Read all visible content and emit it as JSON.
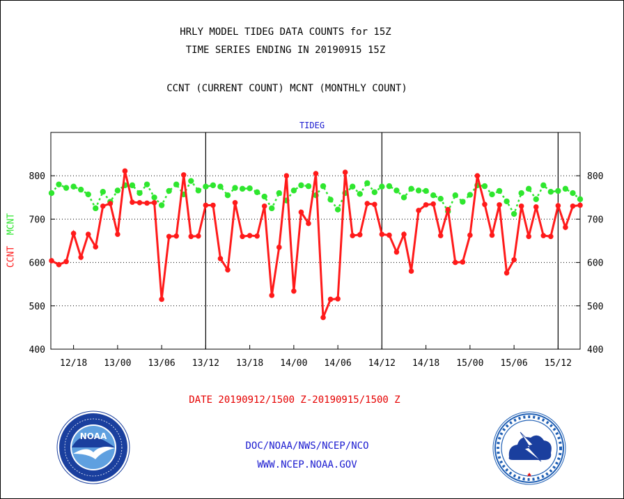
{
  "header": {
    "title_line1": "HRLY MODEL TIDEG DATA COUNTS for 15Z",
    "title_line2": "TIME SERIES ENDING IN 20190915 15Z",
    "subtitle": "CCNT (CURRENT COUNT) MCNT (MONTHLY COUNT)"
  },
  "footer": {
    "date_range": "DATE 20190912/1500 Z-20190915/1500 Z",
    "org": "DOC/NOAA/NWS/NCEP/NCO",
    "url": "WWW.NCEP.NOAA.GOV"
  },
  "logos": {
    "left": {
      "icon": "noaa-logo-icon",
      "text": "NOAA",
      "colors": {
        "ring": "#1a3f9e",
        "center": "#5fa0e0",
        "gull": "#ffffff"
      }
    },
    "right": {
      "icon": "nws-logo-icon",
      "colors": {
        "ring": "#1f5fb4",
        "center": "#ffffff",
        "cloud": "#1a3f9e"
      }
    }
  },
  "colors": {
    "ccnt": "#ff1a1a",
    "mcnt": "#2ee62e",
    "panel_title": "#1a1ad0",
    "footer_red": "#e60000",
    "footer_blue": "#1a1ad0"
  },
  "chart_data": {
    "type": "line",
    "title": "TIDEG",
    "ylabel_ccnt": "CCNT",
    "ylabel_mcnt": "MCNT",
    "ylim": [
      400,
      900
    ],
    "yticks": [
      400,
      500,
      600,
      700,
      800
    ],
    "ytick_labels": [
      "400",
      "500",
      "600",
      "700",
      "800"
    ],
    "grid": "dotted horizontal at 500, 600, 700, 800",
    "x_start": "20190912/1500 Z",
    "x_end": "20190915/1500 Z",
    "x_hours": [
      15,
      16,
      17,
      18,
      19,
      20,
      21,
      22,
      23,
      0,
      1,
      2,
      3,
      4,
      5,
      6,
      7,
      8,
      9,
      10,
      11,
      12,
      13,
      14,
      15,
      16,
      17,
      18,
      19,
      20,
      21,
      22,
      23,
      0,
      1,
      2,
      3,
      4,
      5,
      6,
      7,
      8,
      9,
      10,
      11,
      12,
      13,
      14,
      15,
      16,
      17,
      18,
      19,
      20,
      21,
      22,
      23,
      0,
      1,
      2,
      3,
      4,
      5,
      6,
      7,
      8,
      9,
      10,
      11,
      12,
      13,
      14,
      15
    ],
    "xtick_labels": [
      "12/18",
      "13/00",
      "13/06",
      "13/12",
      "13/18",
      "14/00",
      "14/06",
      "14/12",
      "14/18",
      "15/00",
      "15/06",
      "15/12"
    ],
    "xtick_hour_index": [
      3,
      9,
      15,
      21,
      27,
      33,
      39,
      45,
      51,
      57,
      63,
      69
    ],
    "day_boundaries_at_12z_index": [
      21,
      45,
      69
    ],
    "series": [
      {
        "name": "CCNT",
        "color": "#ff1a1a",
        "values": [
          604,
          595,
          602,
          667,
          612,
          665,
          636,
          730,
          736,
          665,
          811,
          739,
          738,
          737,
          738,
          515,
          660,
          661,
          802,
          660,
          661,
          732,
          732,
          609,
          583,
          738,
          660,
          662,
          661,
          730,
          524,
          635,
          800,
          534,
          716,
          690,
          805,
          473,
          515,
          516,
          808,
          662,
          664,
          736,
          734,
          665,
          663,
          624,
          665,
          580,
          720,
          733,
          735,
          662,
          722,
          600,
          601,
          663,
          800,
          734,
          663,
          733,
          576,
          606,
          730,
          660,
          728,
          662,
          660,
          731,
          681,
          730,
          732
        ]
      },
      {
        "name": "MCNT",
        "color": "#2ee62e",
        "values": [
          760,
          780,
          772,
          775,
          768,
          757,
          725,
          763,
          740,
          766,
          778,
          778,
          760,
          780,
          750,
          732,
          765,
          780,
          757,
          788,
          766,
          775,
          778,
          775,
          755,
          772,
          770,
          771,
          762,
          752,
          725,
          760,
          743,
          766,
          778,
          776,
          755,
          776,
          745,
          722,
          760,
          775,
          758,
          783,
          762,
          775,
          776,
          766,
          750,
          770,
          766,
          765,
          755,
          747,
          718,
          755,
          740,
          756,
          778,
          776,
          757,
          765,
          741,
          712,
          760,
          770,
          746,
          778,
          763,
          765,
          770,
          760,
          746
        ]
      }
    ]
  }
}
